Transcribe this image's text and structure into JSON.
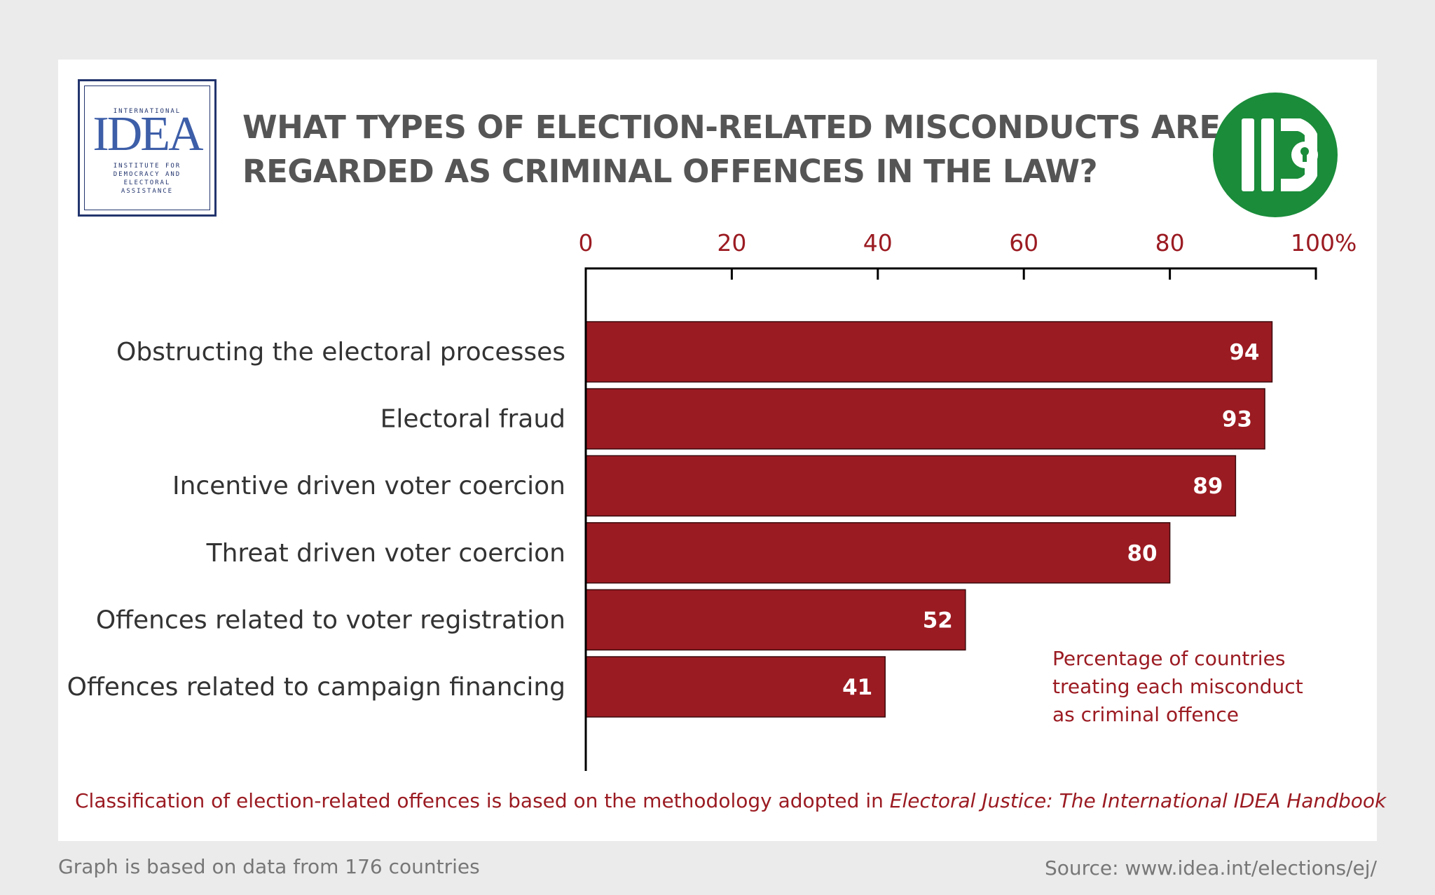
{
  "logo": {
    "top_text": "INTERNATIONAL",
    "word": "IDEA",
    "line1": "INSTITUTE FOR",
    "line2": "DEMOCRACY AND",
    "line3": "ELECTORAL",
    "line4": "ASSISTANCE"
  },
  "badge_icon": "electoral-justice-icon",
  "title_line1": "WHAT TYPES OF ELECTION-RELATED MISCONDUCTS ARE",
  "title_line2": "REGARDED AS CRIMINAL OFFENCES IN THE LAW?",
  "note_line1": "Percentage of countries",
  "note_line2": "treating each misconduct",
  "note_line3": "as criminal offence",
  "classification_prefix": "Classification of election-related offences is based on the methodology adopted in ",
  "classification_title": "Electoral Justice: The International IDEA Handbook",
  "footer_left": "Graph is based on data from 176 countries",
  "footer_right": "Source: www.idea.int/elections/ej/",
  "colors": {
    "bar": "#9b1b22",
    "tick_text": "#9b1b22",
    "title": "#555555",
    "badge": "#1a8c3a",
    "logo_blue": "#23356e"
  },
  "chart_data": {
    "type": "bar",
    "orientation": "horizontal",
    "categories": [
      "Obstructing the electoral processes",
      "Electoral fraud",
      "Incentive driven voter coercion",
      "Threat driven voter coercion",
      "Offences related to voter registration",
      "Offences related to campaign financing"
    ],
    "values": [
      94,
      93,
      89,
      80,
      52,
      41
    ],
    "value_labels": [
      "94",
      "93",
      "89",
      "80",
      "52",
      "41"
    ],
    "xlim": [
      0,
      100
    ],
    "ticks": [
      0,
      20,
      40,
      60,
      80,
      100
    ],
    "tick_labels": [
      "0",
      "20",
      "40",
      "60",
      "80",
      "100%"
    ],
    "axis_position": "top",
    "grid": false
  }
}
